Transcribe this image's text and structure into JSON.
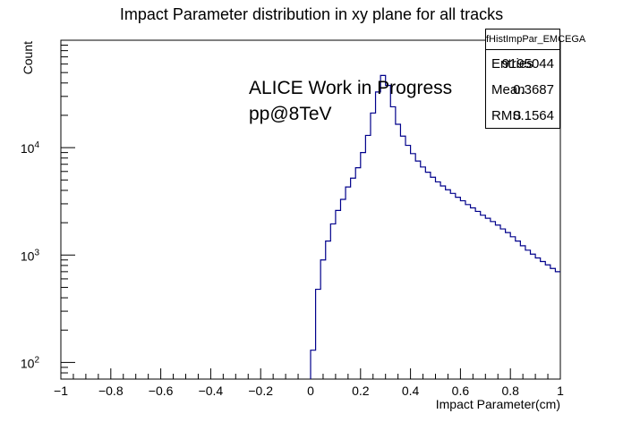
{
  "chart_data": {
    "type": "histogram",
    "title": "Impact Parameter distribution in xy plane for all tracks",
    "xlabel": "Impact Parameter(cm)",
    "ylabel": "Count",
    "xlim": [
      -1,
      1
    ],
    "ylim": [
      70,
      100000
    ],
    "yscale": "log",
    "grid": false,
    "line_color": "#00008b",
    "x_ticks": [
      "−1",
      "−0.8",
      "−0.6",
      "−0.4",
      "−0.2",
      "0",
      "0.2",
      "0.4",
      "0.6",
      "0.8",
      "1"
    ],
    "y_ticks": [
      {
        "value": 100,
        "base": "10",
        "exp": "2"
      },
      {
        "value": 1000,
        "base": "10",
        "exp": "3"
      },
      {
        "value": 10000,
        "base": "10",
        "exp": "4"
      }
    ],
    "bin_edges": [
      0,
      0.02,
      0.04,
      0.06,
      0.08,
      0.1,
      0.12,
      0.14,
      0.16,
      0.18,
      0.2,
      0.22,
      0.24,
      0.26,
      0.28,
      0.3,
      0.32,
      0.34,
      0.36,
      0.38,
      0.4,
      0.42,
      0.44,
      0.46,
      0.48,
      0.5,
      0.52,
      0.54,
      0.56,
      0.58,
      0.6,
      0.62,
      0.64,
      0.66,
      0.68,
      0.7,
      0.72,
      0.74,
      0.76,
      0.78,
      0.8,
      0.82,
      0.84,
      0.86,
      0.88,
      0.9,
      0.92,
      0.94,
      0.96,
      0.98,
      1.0
    ],
    "values": [
      130,
      480,
      900,
      1350,
      1950,
      2600,
      3300,
      4300,
      5200,
      6500,
      9000,
      13000,
      21000,
      33000,
      47000,
      38000,
      24000,
      16500,
      12800,
      10500,
      8800,
      7500,
      6600,
      5900,
      5300,
      4800,
      4400,
      4050,
      3750,
      3450,
      3200,
      2950,
      2750,
      2550,
      2350,
      2200,
      2050,
      1900,
      1750,
      1620,
      1480,
      1350,
      1220,
      1110,
      1020,
      940,
      870,
      810,
      750,
      700
    ]
  },
  "annotation": {
    "line1": "ALICE Work in Progress",
    "line2": "pp@8TeV"
  },
  "stats": {
    "title": "fHistImpPar_EMCEGA",
    "rows": [
      {
        "label": "Entries",
        "value": "9195044"
      },
      {
        "label": "Mean",
        "value": "0.3687"
      },
      {
        "label": "RMS",
        "value": "0.1564"
      }
    ]
  }
}
